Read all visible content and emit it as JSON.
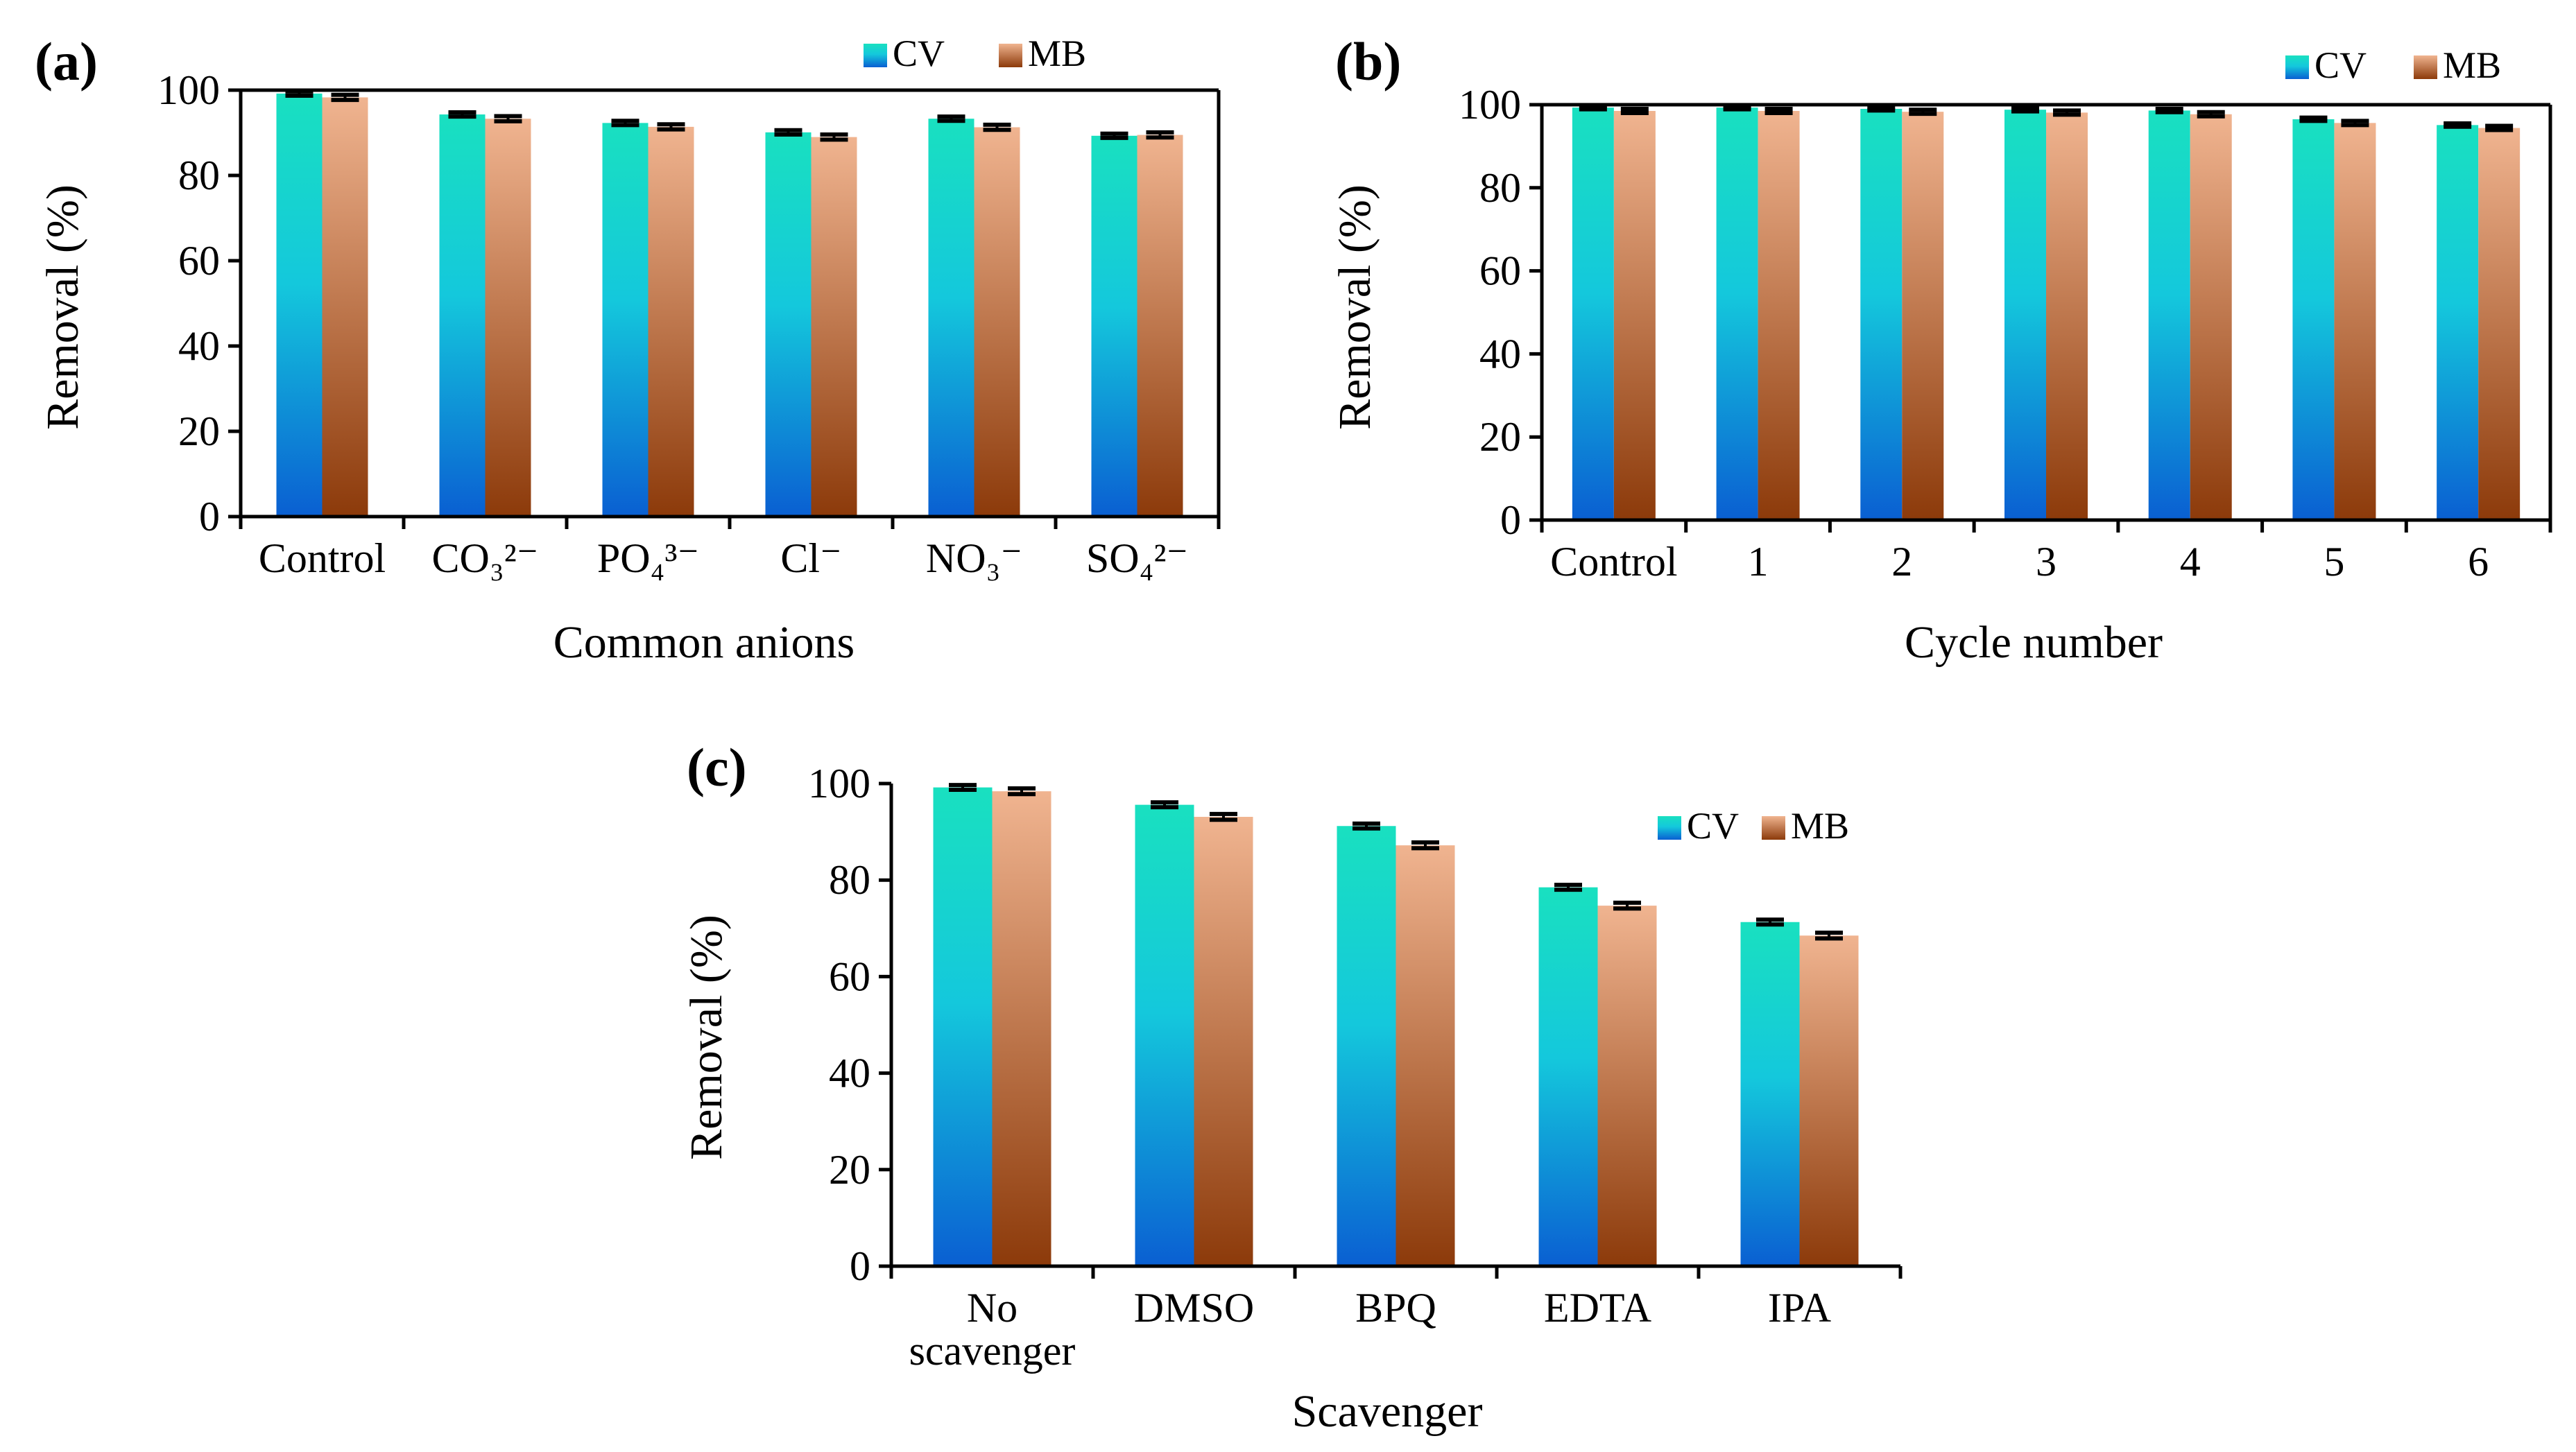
{
  "colors": {
    "cv_top": "#19e0c0",
    "cv_mid": "#14c8dc",
    "cv_bottom": "#0a5fd2",
    "mb_top": "#f0b490",
    "mb_bottom": "#8c3a0a",
    "axis": "#000000"
  },
  "legend": {
    "cv": "CV",
    "mb": "MB"
  },
  "chart_data": [
    {
      "panel": "(a)",
      "type": "bar",
      "title": "",
      "xlabel": "Common anions",
      "ylabel": "Removal (%)",
      "ylim": [
        0,
        100
      ],
      "yticks": [
        "0",
        "20",
        "40",
        "60",
        "80",
        "100"
      ],
      "legend_position": "top-right",
      "categories": [
        "Control",
        "CO₃²⁻",
        "PO₄³⁻",
        "Cl⁻",
        "NO₃⁻",
        "SO₄²⁻"
      ],
      "category_lines": [
        [
          "Control"
        ],
        [
          "CO₃²⁻"
        ],
        [
          "PO₄³⁻"
        ],
        [
          "Cl⁻"
        ],
        [
          "NO₃⁻"
        ],
        [
          "SO₄²⁻"
        ]
      ],
      "series": [
        {
          "name": "CV",
          "values": [
            99.2,
            94.3,
            92.3,
            90.1,
            93.3,
            89.3
          ]
        },
        {
          "name": "MB",
          "values": [
            98.3,
            93.3,
            91.4,
            89.0,
            91.3,
            89.5
          ]
        }
      ],
      "errors": [
        [
          0.5,
          0.5,
          0.5,
          0.5,
          0.5,
          0.5
        ],
        [
          0.6,
          0.6,
          0.6,
          0.6,
          0.6,
          0.6
        ]
      ]
    },
    {
      "panel": "(b)",
      "type": "bar",
      "title": "",
      "xlabel": "Cycle number",
      "ylabel": "Removal (%)",
      "ylim": [
        0,
        100
      ],
      "yticks": [
        "0",
        "20",
        "40",
        "60",
        "80",
        "100"
      ],
      "legend_position": "top-right",
      "categories": [
        "Control",
        "1",
        "2",
        "3",
        "4",
        "5",
        "6"
      ],
      "category_lines": [
        [
          "Control"
        ],
        [
          "1"
        ],
        [
          "2"
        ],
        [
          "3"
        ],
        [
          "4"
        ],
        [
          "5"
        ],
        [
          "6"
        ]
      ],
      "series": [
        {
          "name": "CV",
          "values": [
            99.3,
            99.3,
            99.0,
            98.8,
            98.6,
            96.5,
            95.1
          ]
        },
        {
          "name": "MB",
          "values": [
            98.5,
            98.5,
            98.3,
            98.1,
            97.7,
            95.6,
            94.4
          ]
        }
      ],
      "errors": [
        [
          0.4,
          0.4,
          0.4,
          0.4,
          0.4,
          0.4,
          0.4
        ],
        [
          0.5,
          0.5,
          0.5,
          0.5,
          0.5,
          0.5,
          0.5
        ]
      ]
    },
    {
      "panel": "(c)",
      "type": "bar",
      "title": "",
      "xlabel": "Scavenger",
      "ylabel": "Removal (%)",
      "ylim": [
        0,
        100
      ],
      "yticks": [
        "0",
        "20",
        "40",
        "60",
        "80",
        "100"
      ],
      "legend_position": "top-right",
      "categories": [
        "No scavenger",
        "DMSO",
        "BPQ",
        "EDTA",
        "IPA"
      ],
      "category_lines": [
        [
          "No",
          "scavenger"
        ],
        [
          "DMSO"
        ],
        [
          "BPQ"
        ],
        [
          "EDTA"
        ],
        [
          "IPA"
        ]
      ],
      "series": [
        {
          "name": "CV",
          "values": [
            99.2,
            95.6,
            91.2,
            78.5,
            71.3
          ]
        },
        {
          "name": "MB",
          "values": [
            98.4,
            93.1,
            87.2,
            74.7,
            68.5
          ]
        }
      ],
      "errors": [
        [
          0.5,
          0.5,
          0.5,
          0.5,
          0.5
        ],
        [
          0.6,
          0.6,
          0.6,
          0.6,
          0.6
        ]
      ]
    }
  ]
}
